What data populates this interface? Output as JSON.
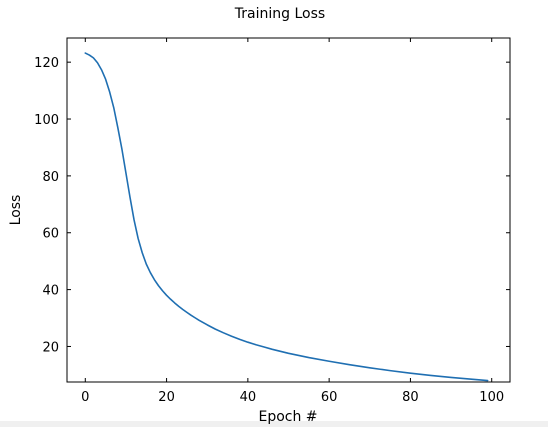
{
  "chart_data": {
    "type": "line",
    "title": "Training Loss",
    "xlabel": "Epoch #",
    "ylabel": "Loss",
    "xlim": [
      -4.5,
      104.5
    ],
    "ylim": [
      7.5,
      128.5
    ],
    "xticks": [
      0,
      20,
      40,
      60,
      80,
      100
    ],
    "yticks": [
      20,
      40,
      60,
      80,
      100,
      120
    ],
    "grid": false,
    "legend": null,
    "series": [
      {
        "color": "#1f6fb2",
        "x": [
          0,
          1,
          2,
          3,
          4,
          5,
          6,
          7,
          8,
          9,
          10,
          11,
          12,
          13,
          14,
          15,
          16,
          17,
          18,
          19,
          20,
          21,
          22,
          23,
          24,
          25,
          26,
          27,
          28,
          29,
          30,
          32,
          34,
          36,
          38,
          40,
          42,
          44,
          46,
          48,
          50,
          55,
          60,
          65,
          70,
          75,
          80,
          85,
          90,
          95,
          99
        ],
        "y": [
          123.2,
          122.5,
          121.5,
          119.8,
          117.3,
          114.0,
          109.5,
          104.0,
          97.0,
          89.5,
          81.0,
          72.5,
          64.5,
          58.0,
          53.0,
          49.0,
          46.0,
          43.5,
          41.4,
          39.6,
          38.0,
          36.6,
          35.3,
          34.1,
          33.0,
          32.0,
          31.0,
          30.1,
          29.2,
          28.4,
          27.6,
          26.1,
          24.8,
          23.6,
          22.5,
          21.5,
          20.6,
          19.8,
          19.0,
          18.3,
          17.6,
          16.1,
          14.8,
          13.6,
          12.5,
          11.5,
          10.6,
          9.8,
          9.1,
          8.5,
          8.0
        ]
      }
    ]
  }
}
